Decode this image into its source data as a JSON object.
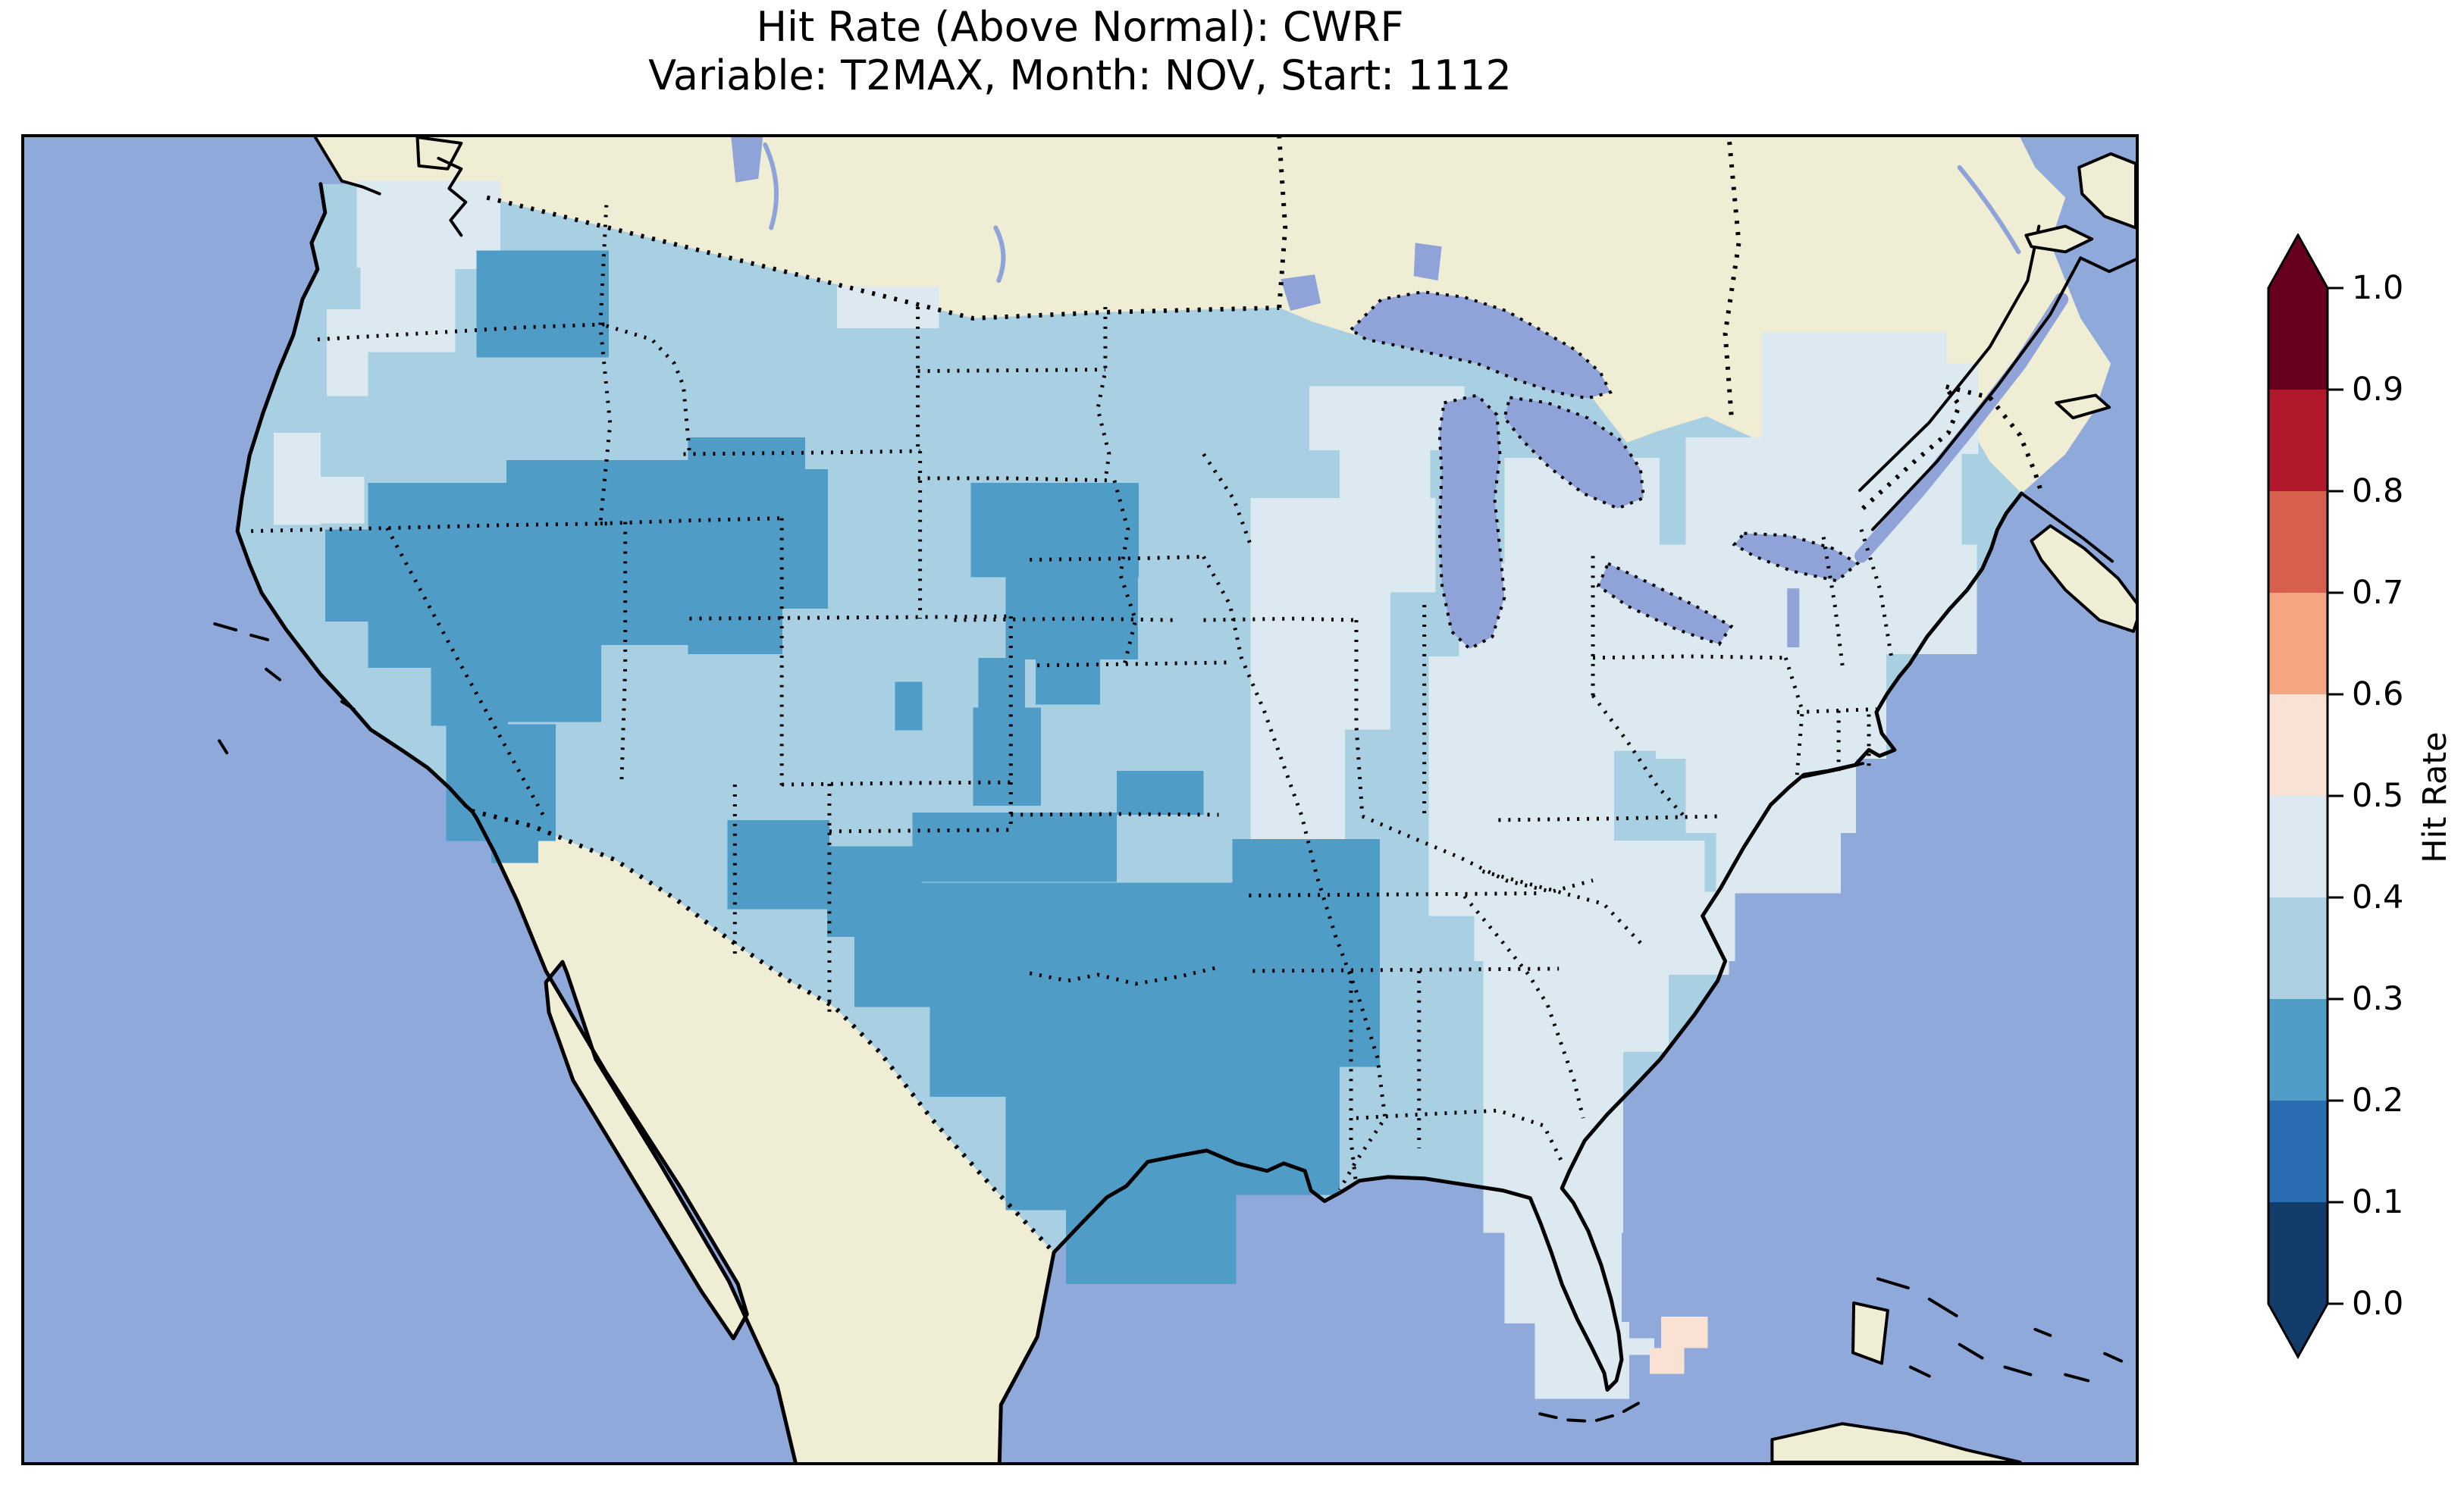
{
  "figure": {
    "title_line1": "Hit Rate (Above Normal): CWRF",
    "title_line2": "Variable: T2MAX, Month: NOV, Start: 1112"
  },
  "colorbar": {
    "label": "Hit Rate",
    "ticks": [
      "1.0",
      "0.9",
      "0.8",
      "0.7",
      "0.6",
      "0.5",
      "0.4",
      "0.3",
      "0.2",
      "0.1",
      "0.0"
    ],
    "segments": [
      {
        "range": "0.0-0.1",
        "color": "#123d6b"
      },
      {
        "range": "0.1-0.2",
        "color": "#2a6db2"
      },
      {
        "range": "0.2-0.3",
        "color": "#4f9cc7"
      },
      {
        "range": "0.3-0.4",
        "color": "#abd1e3"
      },
      {
        "range": "0.4-0.5",
        "color": "#dce9f1"
      },
      {
        "range": "0.5-0.6",
        "color": "#f9e2d3"
      },
      {
        "range": "0.6-0.7",
        "color": "#f4a582"
      },
      {
        "range": "0.7-0.8",
        "color": "#d6604d"
      },
      {
        "range": "0.8-0.9",
        "color": "#b2182b"
      },
      {
        "range": "0.9-1.0",
        "color": "#67001f"
      }
    ],
    "extend": "both",
    "under_color": "#123d6b",
    "over_color": "#67001f"
  },
  "map": {
    "palette": {
      "ocean": "#90a9db",
      "land": "#f0edd5",
      "lake": "#8fa3d8",
      "b23": "#4f9cc7",
      "b34": "#a9cfe2",
      "b45": "#dce9f1",
      "b56": "#f9e2d3"
    },
    "line_styles": {
      "coastline": "solid black",
      "state_borders": "dotted black",
      "international_borders": "dotted black",
      "lake_outlines": "dotted black"
    }
  },
  "chart_data": {
    "type": "heatmap",
    "title": "Hit Rate (Above Normal): CWRF",
    "subtitle": "Variable: T2MAX, Month: NOV, Start: 1112",
    "colorbar_label": "Hit Rate",
    "levels": [
      0.0,
      0.1,
      0.2,
      0.3,
      0.4,
      0.5,
      0.6,
      0.7,
      0.8,
      0.9,
      1.0
    ],
    "colors": [
      "#123d6b",
      "#2a6db2",
      "#4f9cc7",
      "#abd1e3",
      "#dce9f1",
      "#f9e2d3",
      "#f4a582",
      "#d6604d",
      "#b2182b",
      "#67001f"
    ],
    "extend": "both",
    "extent_note": "Pixelated grid-cell hit-rate field over the contiguous United States; ocean and non-US land masked",
    "regions": [
      {
        "region": "Most of contiguous US (background field)",
        "hit_rate": "0.3-0.4"
      },
      {
        "region": "Coastal W Washington / Puget Sound / NW Oregon coast",
        "hit_rate": "0.4-0.5"
      },
      {
        "region": "Central Washington patch",
        "hit_rate": "0.2-0.3"
      },
      {
        "region": "Great Basin: Nevada, Utah, W Colorado, N Arizona, SE California",
        "hit_rate": "0.2-0.3"
      },
      {
        "region": "S Minnesota / NW Iowa / E Nebraska patch",
        "hit_rate": "0.2-0.3"
      },
      {
        "region": "Southern Plains blob: Oklahoma, N & E Texas, Arkansas, W Louisiana, S Kansas, NE New Mexico",
        "hit_rate": "0.2-0.3"
      },
      {
        "region": "Upper Midwest: Wisconsin, Michigan, N Illinois, Indiana, Ohio",
        "hit_rate": "0.4-0.5"
      },
      {
        "region": "Northeast: New York, Pennsylvania, New England",
        "hit_rate": "0.4-0.5"
      },
      {
        "region": "Mid-Atlantic & Southeast coast: Virginia, Carolinas, E Georgia",
        "hit_rate": "0.4-0.5"
      },
      {
        "region": "Florida peninsula",
        "hit_rate": "0.4-0.5"
      },
      {
        "region": "South Florida tip near Miami (two cells)",
        "hit_rate": "0.5-0.6"
      }
    ]
  }
}
